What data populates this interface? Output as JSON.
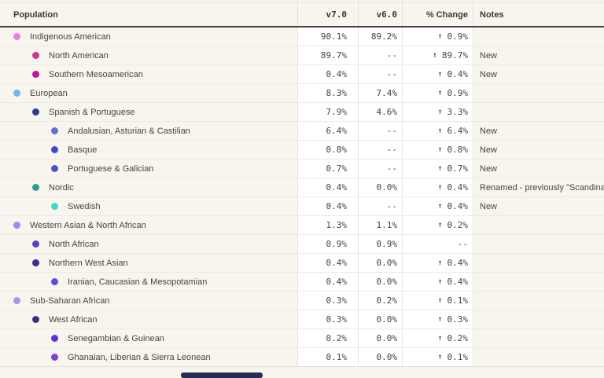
{
  "table": {
    "columns": [
      "Population",
      "v7.0",
      "v6.0",
      "% Change",
      "Notes"
    ],
    "rows": [
      {
        "label": "Indigenous American",
        "level": 1,
        "dot_color": "#ef7ce0",
        "v7": "90.1%",
        "v6": "89.2%",
        "change": "0.9%",
        "direction": "up",
        "notes": ""
      },
      {
        "label": "North American",
        "level": 2,
        "dot_color": "#d23490",
        "v7": "89.7%",
        "v6": "--",
        "change": "89.7%",
        "direction": "up",
        "notes": "New"
      },
      {
        "label": "Southern Mesoamerican",
        "level": 2,
        "dot_color": "#bd14a4",
        "v7": "0.4%",
        "v6": "--",
        "change": "0.4%",
        "direction": "up",
        "notes": "New"
      },
      {
        "label": "European",
        "level": 1,
        "dot_color": "#72b5f3",
        "v7": "8.3%",
        "v6": "7.4%",
        "change": "0.9%",
        "direction": "up",
        "notes": ""
      },
      {
        "label": "Spanish & Portuguese",
        "level": 2,
        "dot_color": "#2f3b8f",
        "v7": "7.9%",
        "v6": "4.6%",
        "change": "3.3%",
        "direction": "up",
        "notes": ""
      },
      {
        "label": "Andalusian, Asturian & Castilian",
        "level": 3,
        "dot_color": "#6270d5",
        "v7": "6.4%",
        "v6": "--",
        "change": "6.4%",
        "direction": "up",
        "notes": "New"
      },
      {
        "label": "Basque",
        "level": 3,
        "dot_color": "#3c4dc5",
        "v7": "0.8%",
        "v6": "--",
        "change": "0.8%",
        "direction": "up",
        "notes": "New"
      },
      {
        "label": "Portuguese & Galician",
        "level": 3,
        "dot_color": "#4a53c5",
        "v7": "0.7%",
        "v6": "--",
        "change": "0.7%",
        "direction": "up",
        "notes": "New"
      },
      {
        "label": "Nordic",
        "level": 2,
        "dot_color": "#2f9d93",
        "v7": "0.4%",
        "v6": "0.0%",
        "change": "0.4%",
        "direction": "up",
        "notes": "Renamed - previously \"Scandinavian\""
      },
      {
        "label": "Swedish",
        "level": 3,
        "dot_color": "#39dcc8",
        "v7": "0.4%",
        "v6": "--",
        "change": "0.4%",
        "direction": "up",
        "notes": "New"
      },
      {
        "label": "Western Asian & North African",
        "level": 1,
        "dot_color": "#9d8deb",
        "v7": "1.3%",
        "v6": "1.1%",
        "change": "0.2%",
        "direction": "up",
        "notes": ""
      },
      {
        "label": "North African",
        "level": 2,
        "dot_color": "#5a3cc9",
        "v7": "0.9%",
        "v6": "0.9%",
        "change": "--",
        "direction": null,
        "notes": ""
      },
      {
        "label": "Northern West Asian",
        "level": 2,
        "dot_color": "#382b8c",
        "v7": "0.4%",
        "v6": "0.0%",
        "change": "0.4%",
        "direction": "up",
        "notes": ""
      },
      {
        "label": "Iranian, Caucasian & Mesopotamian",
        "level": 3,
        "dot_color": "#5950da",
        "v7": "0.4%",
        "v6": "0.0%",
        "change": "0.4%",
        "direction": "up",
        "notes": ""
      },
      {
        "label": "Sub-Saharan African",
        "level": 1,
        "dot_color": "#b28fe8",
        "v7": "0.3%",
        "v6": "0.2%",
        "change": "0.1%",
        "direction": "up",
        "notes": ""
      },
      {
        "label": "West African",
        "level": 2,
        "dot_color": "#472a80",
        "v7": "0.3%",
        "v6": "0.0%",
        "change": "0.3%",
        "direction": "up",
        "notes": ""
      },
      {
        "label": "Senegambian & Guinean",
        "level": 3,
        "dot_color": "#6233d0",
        "v7": "0.2%",
        "v6": "0.0%",
        "change": "0.2%",
        "direction": "up",
        "notes": ""
      },
      {
        "label": "Ghanaian, Liberian & Sierra Leonean",
        "level": 3,
        "dot_color": "#7a42d2",
        "v7": "0.1%",
        "v6": "0.0%",
        "change": "0.1%",
        "direction": "up",
        "notes": ""
      }
    ]
  },
  "icons": {
    "up_arrow": "↑"
  }
}
